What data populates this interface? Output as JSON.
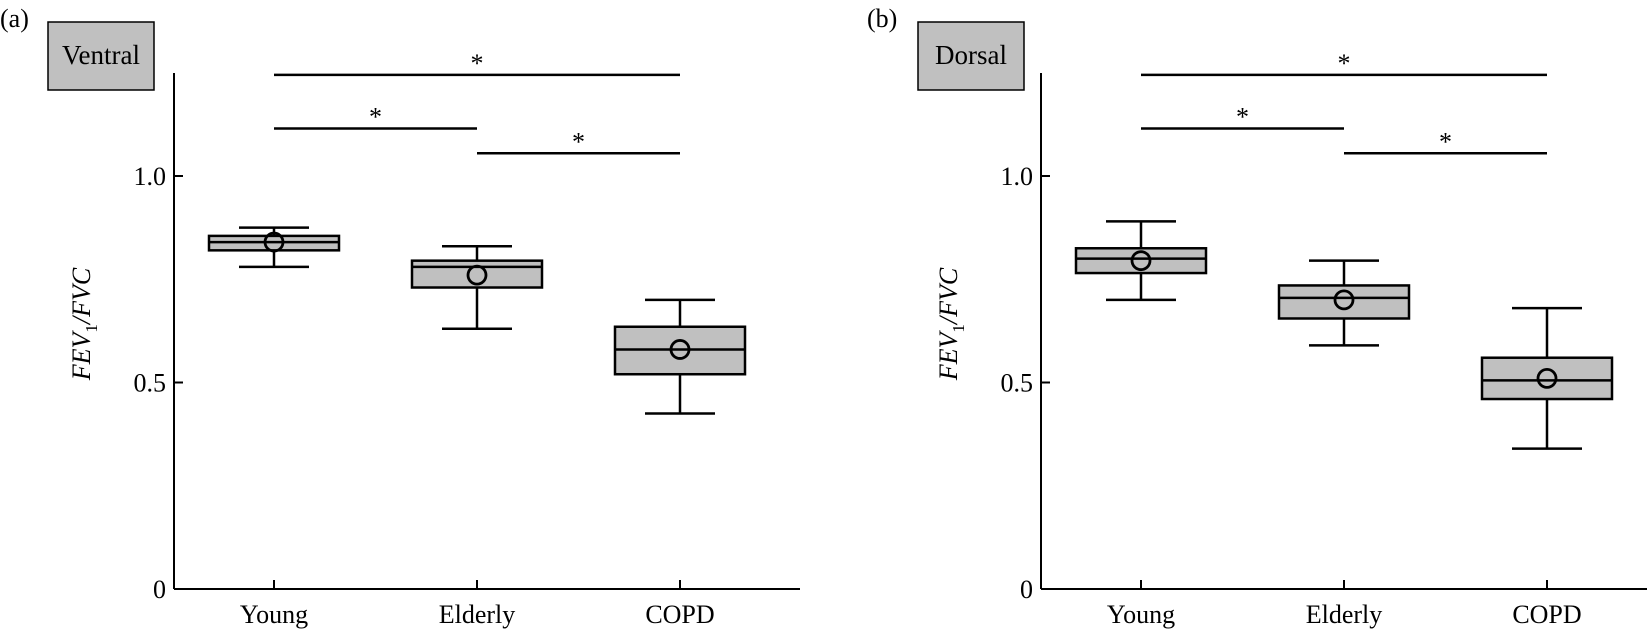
{
  "panels": [
    {
      "label": "(a)",
      "region": "Ventral",
      "ylabel_main": "FEV",
      "ylabel_sub": "1",
      "ylabel_tail": "/FVC"
    },
    {
      "label": "(b)",
      "region": "Dorsal",
      "ylabel_main": "FEV",
      "ylabel_sub": "1",
      "ylabel_tail": "/FVC"
    }
  ],
  "chart_data": [
    {
      "type": "box",
      "title": "Ventral",
      "xlabel": "",
      "ylabel": "FEV1/FVC",
      "categories": [
        "Young",
        "Elderly",
        "COPD"
      ],
      "ylim": [
        0,
        1.25
      ],
      "yticks": [
        0,
        0.5,
        1.0
      ],
      "ytick_labels": [
        "0",
        "0.5",
        "1.0"
      ],
      "grid": false,
      "boxes": [
        {
          "category": "Young",
          "whisker_low": 0.78,
          "q1": 0.82,
          "median": 0.84,
          "q3": 0.855,
          "whisker_high": 0.875,
          "mean": 0.84
        },
        {
          "category": "Elderly",
          "whisker_low": 0.63,
          "q1": 0.73,
          "median": 0.78,
          "q3": 0.795,
          "whisker_high": 0.83,
          "mean": 0.76
        },
        {
          "category": "COPD",
          "whisker_low": 0.425,
          "q1": 0.52,
          "median": 0.58,
          "q3": 0.635,
          "whisker_high": 0.7,
          "mean": 0.58
        }
      ],
      "significance": [
        {
          "from": "Young",
          "to": "COPD",
          "y": 1.245,
          "label": "*"
        },
        {
          "from": "Young",
          "to": "Elderly",
          "y": 1.115,
          "label": "*"
        },
        {
          "from": "Elderly",
          "to": "COPD",
          "y": 1.055,
          "label": "*"
        }
      ]
    },
    {
      "type": "box",
      "title": "Dorsal",
      "xlabel": "",
      "ylabel": "FEV1/FVC",
      "categories": [
        "Young",
        "Elderly",
        "COPD"
      ],
      "ylim": [
        0,
        1.25
      ],
      "yticks": [
        0,
        0.5,
        1.0
      ],
      "ytick_labels": [
        "0",
        "0.5",
        "1.0"
      ],
      "grid": false,
      "boxes": [
        {
          "category": "Young",
          "whisker_low": 0.7,
          "q1": 0.765,
          "median": 0.8,
          "q3": 0.825,
          "whisker_high": 0.89,
          "mean": 0.795
        },
        {
          "category": "Elderly",
          "whisker_low": 0.59,
          "q1": 0.655,
          "median": 0.705,
          "q3": 0.735,
          "whisker_high": 0.795,
          "mean": 0.7
        },
        {
          "category": "COPD",
          "whisker_low": 0.34,
          "q1": 0.46,
          "median": 0.505,
          "q3": 0.56,
          "whisker_high": 0.68,
          "mean": 0.51
        }
      ],
      "significance": [
        {
          "from": "Young",
          "to": "COPD",
          "y": 1.245,
          "label": "*"
        },
        {
          "from": "Young",
          "to": "Elderly",
          "y": 1.115,
          "label": "*"
        },
        {
          "from": "Elderly",
          "to": "COPD",
          "y": 1.055,
          "label": "*"
        }
      ]
    }
  ],
  "style": {
    "box_fill": "#c0c0c0",
    "stroke": "#000000",
    "title_box_fill": "#c0c0c0"
  }
}
